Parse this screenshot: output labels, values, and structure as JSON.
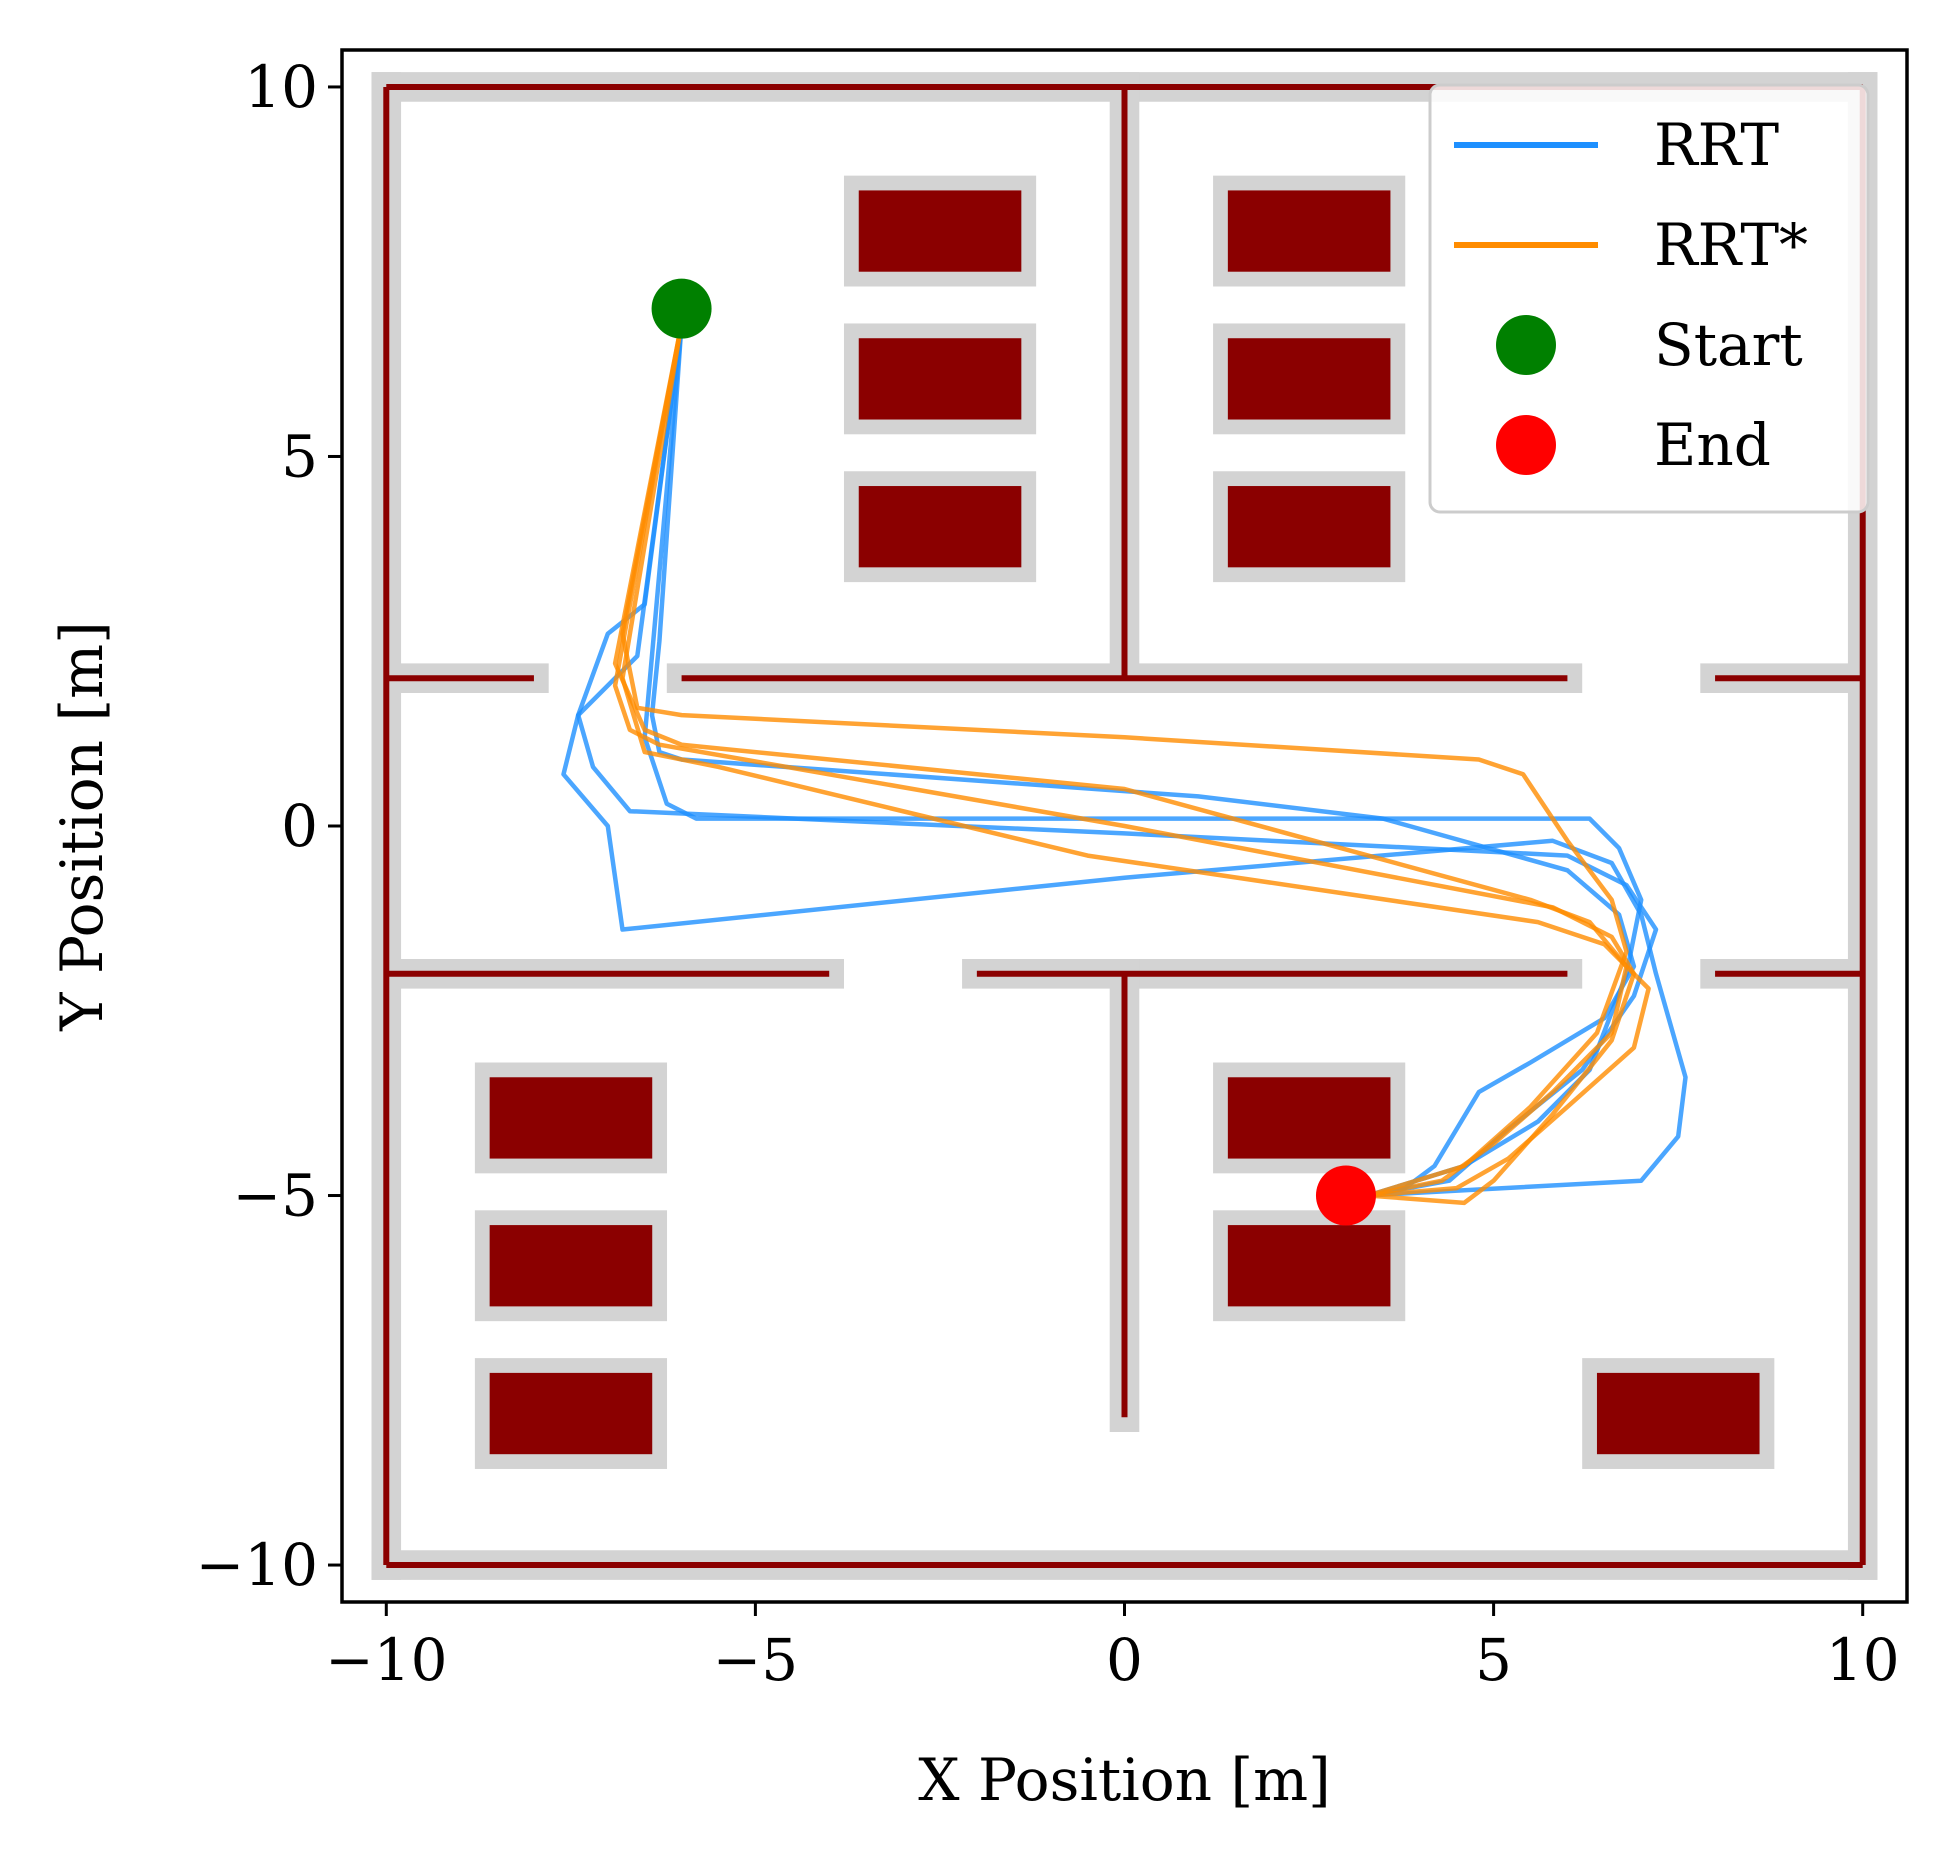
{
  "chart_data": {
    "type": "line",
    "title": "",
    "xlabel": "X Position [m]",
    "ylabel": "Y Position [m]",
    "xlim": [
      -10.6,
      10.6
    ],
    "ylim": [
      -10.5,
      10.5
    ],
    "xticks": [
      -10,
      -5,
      0,
      5,
      10
    ],
    "yticks": [
      -10,
      -5,
      0,
      5,
      10
    ],
    "xtick_labels": [
      "−10",
      "−5",
      "0",
      "5",
      "10"
    ],
    "ytick_labels": [
      "−10",
      "−5",
      "0",
      "5",
      "10"
    ],
    "grid": false,
    "legend_position": "top-right",
    "colors": {
      "rrt": "#1e90ff",
      "rrt_star": "#ff8c00",
      "start": "#008000",
      "end": "#ff0000",
      "obstacle": "#8b0000",
      "inflation": "#d3d3d3"
    },
    "legend": [
      {
        "label": "RRT",
        "kind": "line",
        "color": "#1e90ff"
      },
      {
        "label": "RRT*",
        "kind": "line",
        "color": "#ff8c00"
      },
      {
        "label": "Start",
        "kind": "marker",
        "color": "#008000"
      },
      {
        "label": "End",
        "kind": "marker",
        "color": "#ff0000"
      }
    ],
    "start": {
      "x": -6.0,
      "y": 7.0
    },
    "end": {
      "x": 3.0,
      "y": -5.0
    },
    "walls": [
      {
        "x1": -10,
        "y1": 10,
        "x2": 10,
        "y2": 10
      },
      {
        "x1": -10,
        "y1": -10,
        "x2": 10,
        "y2": -10
      },
      {
        "x1": -10,
        "y1": -10,
        "x2": -10,
        "y2": 10
      },
      {
        "x1": 10,
        "y1": -10,
        "x2": 10,
        "y2": 10
      },
      {
        "x1": 0,
        "y1": 10,
        "x2": 0,
        "y2": 2
      },
      {
        "x1": -10,
        "y1": 2,
        "x2": -8,
        "y2": 2
      },
      {
        "x1": -6,
        "y1": 2,
        "x2": 6,
        "y2": 2
      },
      {
        "x1": 8,
        "y1": 2,
        "x2": 10,
        "y2": 2
      },
      {
        "x1": -10,
        "y1": -2,
        "x2": -4,
        "y2": -2
      },
      {
        "x1": -2,
        "y1": -2,
        "x2": 6,
        "y2": -2
      },
      {
        "x1": 8,
        "y1": -2,
        "x2": 10,
        "y2": -2
      },
      {
        "x1": 0,
        "y1": -2,
        "x2": 0,
        "y2": -8
      }
    ],
    "obstacles": [
      {
        "x": -3.6,
        "y": 7.5,
        "w": 2.2,
        "h": 1.1
      },
      {
        "x": -3.6,
        "y": 5.5,
        "w": 2.2,
        "h": 1.1
      },
      {
        "x": -3.6,
        "y": 3.5,
        "w": 2.2,
        "h": 1.1
      },
      {
        "x": 1.4,
        "y": 7.5,
        "w": 2.2,
        "h": 1.1
      },
      {
        "x": 1.4,
        "y": 5.5,
        "w": 2.2,
        "h": 1.1
      },
      {
        "x": 1.4,
        "y": 3.5,
        "w": 2.2,
        "h": 1.1
      },
      {
        "x": -8.6,
        "y": -4.5,
        "w": 2.2,
        "h": 1.1
      },
      {
        "x": -8.6,
        "y": -6.5,
        "w": 2.2,
        "h": 1.1
      },
      {
        "x": -8.6,
        "y": -8.5,
        "w": 2.2,
        "h": 1.1
      },
      {
        "x": 1.4,
        "y": -4.5,
        "w": 2.2,
        "h": 1.1
      },
      {
        "x": 1.4,
        "y": -6.5,
        "w": 2.2,
        "h": 1.1
      },
      {
        "x": 6.4,
        "y": -8.5,
        "w": 2.2,
        "h": 1.1
      }
    ],
    "series": [
      {
        "name": "RRT",
        "color": "#1e90ff",
        "x": [
          -6.0,
          -6.3,
          -6.4,
          -6.3,
          -6.0,
          1.0,
          3.5,
          6.0,
          6.7,
          6.9,
          6.5,
          5.5,
          4.8,
          4.5,
          4.2,
          3.8,
          3.3
        ],
        "y": [
          6.8,
          2.5,
          1.5,
          1.0,
          0.9,
          0.4,
          0.1,
          -0.6,
          -1.2,
          -1.9,
          -2.6,
          -3.2,
          -3.6,
          -4.1,
          -4.6,
          -4.9,
          -5.0
        ]
      },
      {
        "name": "RRT",
        "color": "#1e90ff",
        "x": [
          -6.0,
          -6.5,
          -7.0,
          -7.4,
          -7.2,
          -6.7,
          0.0,
          6.0,
          6.8,
          7.2,
          6.9,
          6.2,
          5.2,
          4.4,
          3.3
        ],
        "y": [
          6.8,
          3.0,
          2.6,
          1.5,
          0.8,
          0.2,
          -0.1,
          -0.4,
          -0.8,
          -1.4,
          -2.3,
          -3.3,
          -4.1,
          -4.8,
          -5.0
        ]
      },
      {
        "name": "RRT",
        "color": "#1e90ff",
        "x": [
          -6.0,
          -6.6,
          -7.4,
          -7.6,
          -7.0,
          -6.8,
          0.0,
          5.8,
          6.6,
          7.0,
          7.2,
          7.6,
          7.5,
          7.0,
          3.3
        ],
        "y": [
          6.8,
          2.3,
          1.5,
          0.7,
          0.0,
          -1.4,
          -0.7,
          -0.2,
          -0.5,
          -1.2,
          -2.0,
          -3.4,
          -4.2,
          -4.8,
          -5.0
        ]
      },
      {
        "name": "RRT",
        "color": "#1e90ff",
        "x": [
          -6.0,
          -6.5,
          -6.2,
          -5.8,
          0.0,
          6.3,
          6.7,
          7.0,
          6.8,
          6.3,
          5.6,
          4.6,
          3.3
        ],
        "y": [
          6.8,
          1.2,
          0.3,
          0.1,
          0.1,
          0.1,
          -0.3,
          -1.0,
          -2.0,
          -3.3,
          -4.0,
          -4.6,
          -5.0
        ]
      },
      {
        "name": "RRT*",
        "color": "#ff8c00",
        "x": [
          -6.0,
          -6.8,
          -6.6,
          -6.0,
          0.0,
          4.8,
          5.4,
          6.0,
          6.6,
          6.8,
          6.4,
          5.5,
          4.6,
          3.3
        ],
        "y": [
          6.8,
          2.6,
          1.6,
          1.5,
          1.2,
          0.9,
          0.7,
          -0.2,
          -1.0,
          -1.7,
          -2.8,
          -3.8,
          -4.6,
          -5.0
        ]
      },
      {
        "name": "RRT*",
        "color": "#ff8c00",
        "x": [
          -6.0,
          -6.9,
          -6.5,
          -6.0,
          0.0,
          5.5,
          6.3,
          6.8,
          6.6,
          5.8,
          5.0,
          4.3,
          3.3
        ],
        "y": [
          6.8,
          2.2,
          1.3,
          1.1,
          0.5,
          -1.0,
          -1.3,
          -1.9,
          -2.8,
          -3.6,
          -4.3,
          -4.8,
          -5.0
        ]
      },
      {
        "name": "RRT*",
        "color": "#ff8c00",
        "x": [
          -6.0,
          -6.8,
          -6.5,
          -5.5,
          -0.5,
          5.6,
          6.5,
          7.1,
          6.9,
          6.0,
          5.2,
          4.5,
          3.3
        ],
        "y": [
          6.8,
          2.0,
          1.0,
          0.8,
          -0.4,
          -1.3,
          -1.6,
          -2.2,
          -3.0,
          -3.8,
          -4.5,
          -4.9,
          -5.0
        ]
      },
      {
        "name": "RRT*",
        "color": "#ff8c00",
        "x": [
          -6.0,
          -6.9,
          -6.7,
          -6.3,
          0.0,
          5.8,
          6.6,
          6.9,
          6.6,
          5.8,
          5.0,
          4.6,
          3.3
        ],
        "y": [
          6.8,
          1.9,
          1.3,
          1.1,
          0.0,
          -1.1,
          -1.5,
          -2.0,
          -2.9,
          -3.9,
          -4.8,
          -5.1,
          -5.0
        ]
      }
    ]
  }
}
